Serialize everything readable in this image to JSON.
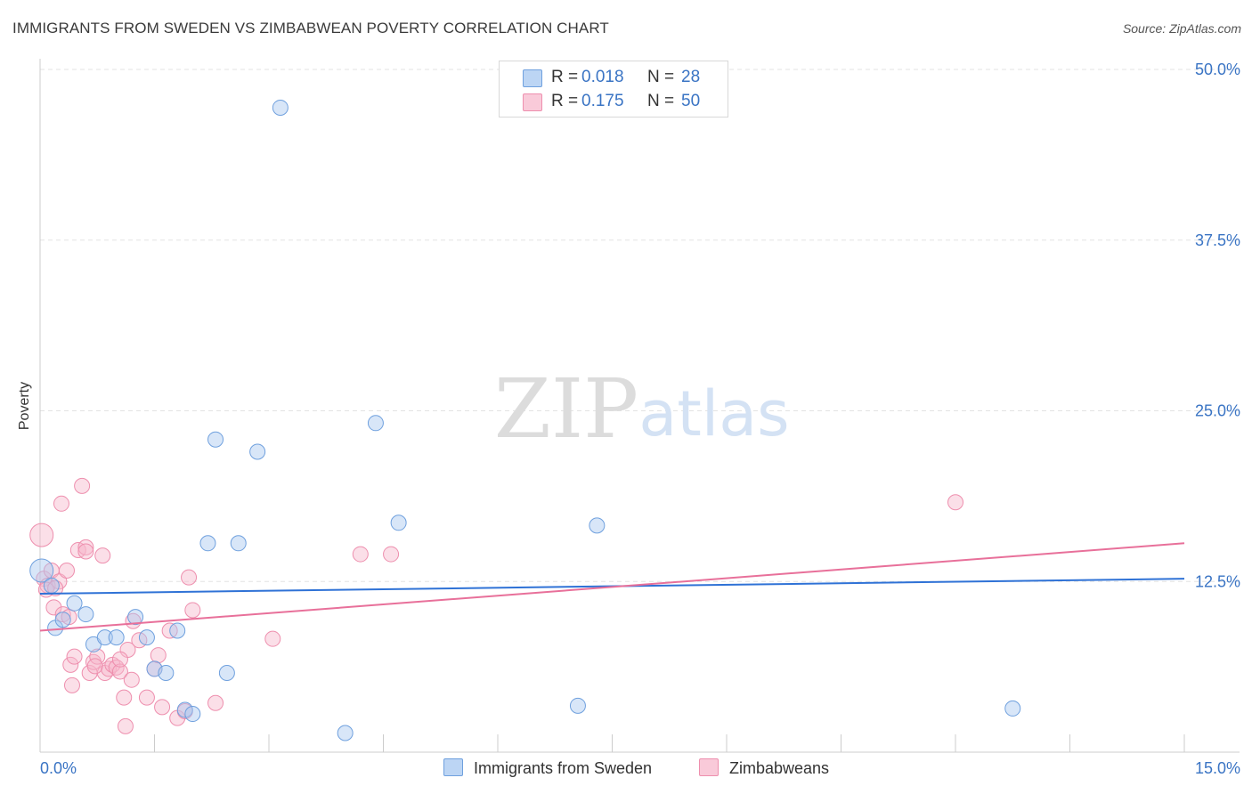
{
  "header": {
    "title": "IMMIGRANTS FROM SWEDEN VS ZIMBABWEAN POVERTY CORRELATION CHART",
    "source": "Source: ZipAtlas.com"
  },
  "watermark": {
    "zip": "ZIP",
    "atlas": "atlas"
  },
  "legend": {
    "rows": [
      {
        "r_label": "R =",
        "r_value": "0.018",
        "n_label": "N =",
        "n_value": "28"
      },
      {
        "r_label": "R =",
        "r_value": "0.175",
        "n_label": "N =",
        "n_value": "50"
      }
    ]
  },
  "colors": {
    "blue_fill": "#a9c8f0",
    "blue_stroke": "#6fa0de",
    "blue_line": "#2f72d6",
    "pink_fill": "#f7b8cc",
    "pink_stroke": "#ee8fae",
    "pink_line": "#e8709a",
    "tick_text": "#3a74c4",
    "grid": "#e3e3e3"
  },
  "chart_data": {
    "type": "scatter",
    "title": "IMMIGRANTS FROM SWEDEN VS ZIMBABWEAN POVERTY CORRELATION CHART",
    "xlabel": "",
    "ylabel": "Poverty",
    "xlim": [
      0,
      15
    ],
    "ylim": [
      0,
      50
    ],
    "x_tick_labels": [
      {
        "value": 0,
        "label": "0.0%"
      },
      {
        "value": 15,
        "label": "15.0%"
      }
    ],
    "y_tick_labels": [
      {
        "value": 12.5,
        "label": "12.5%"
      },
      {
        "value": 25,
        "label": "25.0%"
      },
      {
        "value": 37.5,
        "label": "37.5%"
      },
      {
        "value": 50,
        "label": "50.0%"
      }
    ],
    "legend_position": "top-center",
    "series": [
      {
        "name": "Immigrants from Sweden",
        "R": 0.018,
        "N": 28,
        "trend": {
          "x0": 0,
          "y0": 11.6,
          "x1": 15,
          "y1": 12.7
        },
        "points": [
          {
            "x": 0.02,
            "y": 13.3,
            "big": true
          },
          {
            "x": 0.2,
            "y": 9.1
          },
          {
            "x": 0.3,
            "y": 9.7
          },
          {
            "x": 0.45,
            "y": 10.9
          },
          {
            "x": 0.6,
            "y": 10.1
          },
          {
            "x": 0.7,
            "y": 7.9
          },
          {
            "x": 0.85,
            "y": 8.4
          },
          {
            "x": 1.0,
            "y": 8.4
          },
          {
            "x": 1.25,
            "y": 9.9
          },
          {
            "x": 1.4,
            "y": 8.4
          },
          {
            "x": 1.5,
            "y": 6.1
          },
          {
            "x": 1.65,
            "y": 5.8
          },
          {
            "x": 1.8,
            "y": 8.9
          },
          {
            "x": 1.9,
            "y": 3.1
          },
          {
            "x": 2.0,
            "y": 2.8
          },
          {
            "x": 2.2,
            "y": 15.3
          },
          {
            "x": 2.3,
            "y": 22.9
          },
          {
            "x": 2.45,
            "y": 5.8
          },
          {
            "x": 2.6,
            "y": 15.3
          },
          {
            "x": 2.85,
            "y": 22.0
          },
          {
            "x": 3.15,
            "y": 47.2
          },
          {
            "x": 4.0,
            "y": 1.4
          },
          {
            "x": 4.4,
            "y": 24.1
          },
          {
            "x": 4.7,
            "y": 16.8
          },
          {
            "x": 7.3,
            "y": 16.6
          },
          {
            "x": 7.05,
            "y": 3.4
          },
          {
            "x": 12.75,
            "y": 3.2
          },
          {
            "x": 0.15,
            "y": 12.2
          }
        ]
      },
      {
        "name": "Zimbabweans",
        "R": 0.175,
        "N": 50,
        "trend": {
          "x0": 0,
          "y0": 8.9,
          "x1": 15,
          "y1": 15.3
        },
        "points": [
          {
            "x": 0.02,
            "y": 15.9,
            "big": true
          },
          {
            "x": 0.05,
            "y": 12.7
          },
          {
            "x": 0.1,
            "y": 12.2
          },
          {
            "x": 0.15,
            "y": 13.3
          },
          {
            "x": 0.18,
            "y": 10.6
          },
          {
            "x": 0.25,
            "y": 12.5
          },
          {
            "x": 0.3,
            "y": 10.1
          },
          {
            "x": 0.35,
            "y": 13.3
          },
          {
            "x": 0.4,
            "y": 6.4
          },
          {
            "x": 0.42,
            "y": 4.9
          },
          {
            "x": 0.45,
            "y": 7.0
          },
          {
            "x": 0.5,
            "y": 14.8
          },
          {
            "x": 0.55,
            "y": 19.5
          },
          {
            "x": 0.6,
            "y": 15.0
          },
          {
            "x": 0.65,
            "y": 5.8
          },
          {
            "x": 0.7,
            "y": 6.6
          },
          {
            "x": 0.75,
            "y": 7.0
          },
          {
            "x": 0.82,
            "y": 14.4
          },
          {
            "x": 0.85,
            "y": 5.8
          },
          {
            "x": 0.9,
            "y": 6.1
          },
          {
            "x": 0.95,
            "y": 6.4
          },
          {
            "x": 1.0,
            "y": 6.2
          },
          {
            "x": 1.05,
            "y": 5.9
          },
          {
            "x": 1.1,
            "y": 4.0
          },
          {
            "x": 1.12,
            "y": 1.9
          },
          {
            "x": 1.15,
            "y": 7.5
          },
          {
            "x": 1.2,
            "y": 5.3
          },
          {
            "x": 1.22,
            "y": 9.6
          },
          {
            "x": 1.3,
            "y": 8.2
          },
          {
            "x": 1.4,
            "y": 4.0
          },
          {
            "x": 1.5,
            "y": 6.1
          },
          {
            "x": 1.55,
            "y": 7.1
          },
          {
            "x": 1.6,
            "y": 3.3
          },
          {
            "x": 1.7,
            "y": 8.9
          },
          {
            "x": 1.8,
            "y": 2.5
          },
          {
            "x": 1.9,
            "y": 3.0
          },
          {
            "x": 1.95,
            "y": 12.8
          },
          {
            "x": 2.0,
            "y": 10.4
          },
          {
            "x": 2.3,
            "y": 3.6
          },
          {
            "x": 3.05,
            "y": 8.3
          },
          {
            "x": 4.2,
            "y": 14.5
          },
          {
            "x": 4.6,
            "y": 14.5
          },
          {
            "x": 12.0,
            "y": 18.3
          },
          {
            "x": 0.28,
            "y": 18.2
          },
          {
            "x": 0.08,
            "y": 11.9
          },
          {
            "x": 0.2,
            "y": 12.0
          },
          {
            "x": 0.38,
            "y": 9.9
          },
          {
            "x": 0.72,
            "y": 6.3
          },
          {
            "x": 1.05,
            "y": 6.8
          },
          {
            "x": 0.6,
            "y": 14.7
          }
        ]
      }
    ]
  }
}
